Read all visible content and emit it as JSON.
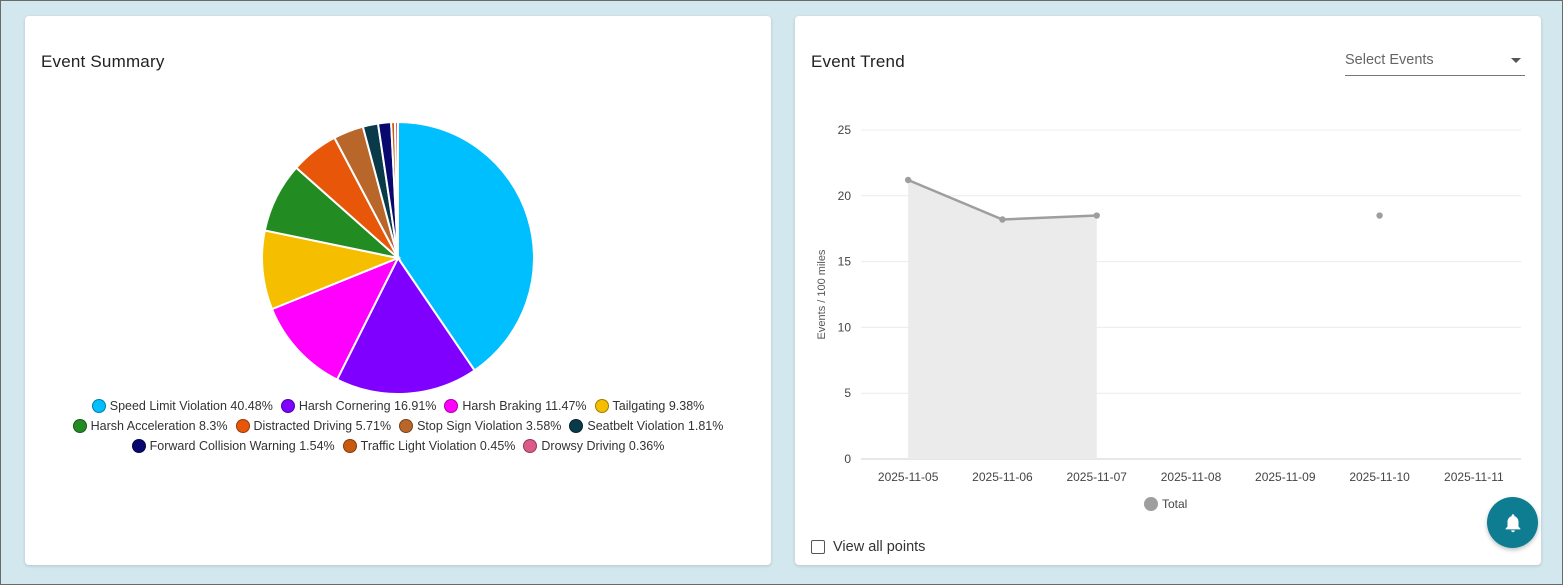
{
  "event_summary": {
    "title": "Event Summary",
    "chart_data": {
      "type": "pie",
      "title": "Event Summary",
      "slices": [
        {
          "label": "Speed Limit Violation",
          "value": 40.48,
          "color": "#00bfff"
        },
        {
          "label": "Harsh Cornering",
          "value": 16.91,
          "color": "#8000ff"
        },
        {
          "label": "Harsh Braking",
          "value": 11.47,
          "color": "#ff00ff"
        },
        {
          "label": "Tailgating",
          "value": 9.38,
          "color": "#f5bf00"
        },
        {
          "label": "Harsh Acceleration",
          "value": 8.3,
          "color": "#228b22"
        },
        {
          "label": "Distracted Driving",
          "value": 5.71,
          "color": "#e8560a"
        },
        {
          "label": "Stop Sign Violation",
          "value": 3.58,
          "color": "#b8662a"
        },
        {
          "label": "Seatbelt Violation",
          "value": 1.81,
          "color": "#083a4a"
        },
        {
          "label": "Forward Collision Warning",
          "value": 1.54,
          "color": "#08086e"
        },
        {
          "label": "Traffic Light Violation",
          "value": 0.45,
          "color": "#c85a0f"
        },
        {
          "label": "Drowsy Driving",
          "value": 0.36,
          "color": "#dc5a8a"
        }
      ],
      "legend_rows": [
        [
          "Speed Limit Violation 40.48%",
          "Harsh Cornering 16.91%",
          "Harsh Braking 11.47%",
          "Tailgating 9.38%"
        ],
        [
          "Harsh Acceleration 8.3%",
          "Distracted Driving 5.71%",
          "Stop Sign Violation 3.58%",
          "Seatbelt Violation 1.81%"
        ],
        [
          "Forward Collision Warning 1.54%",
          "Traffic Light Violation 0.45%",
          "Drowsy Driving 0.36%"
        ]
      ]
    }
  },
  "event_trend": {
    "title": "Event Trend",
    "select_placeholder": "Select Events",
    "view_all_label": "View all points",
    "chart_data": {
      "type": "line",
      "ylabel": "Events / 100 miles",
      "xlabel": "",
      "ylim": [
        0,
        25
      ],
      "yticks": [
        "0",
        "5",
        "10",
        "15",
        "20",
        "25"
      ],
      "x": [
        "2025-11-05",
        "2025-11-06",
        "2025-11-07",
        "2025-11-08",
        "2025-11-09",
        "2025-11-10",
        "2025-11-11"
      ],
      "series": [
        {
          "name": "Total",
          "values": [
            21.2,
            18.2,
            18.5,
            null,
            null,
            18.5,
            null
          ],
          "color": "#9e9e9e"
        }
      ],
      "legend": [
        "Total"
      ]
    }
  }
}
